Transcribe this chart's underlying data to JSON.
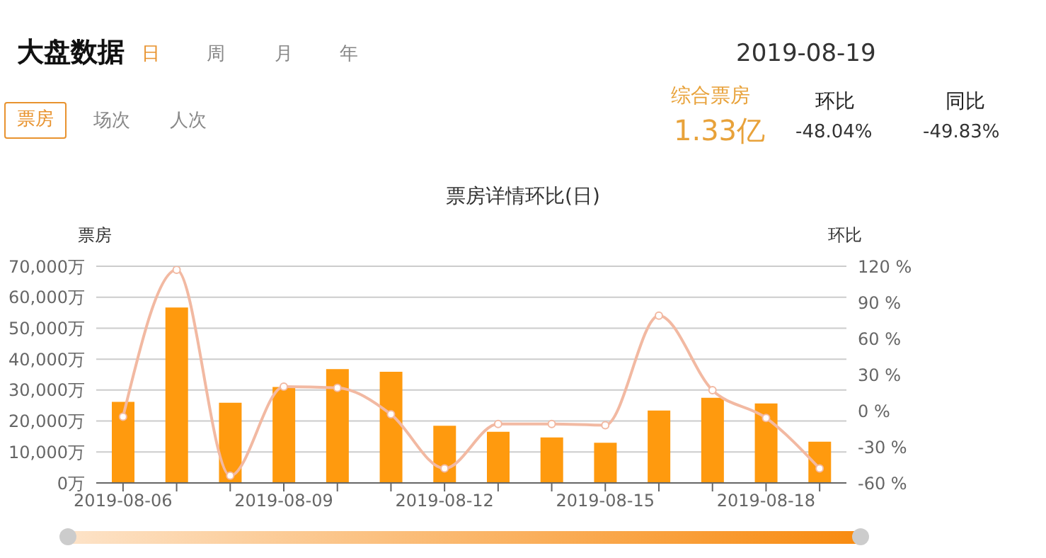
{
  "chart_data": {
    "type": "bar",
    "title": "票房详情环比(日)",
    "ylabel": "票房",
    "y2label": "环比",
    "annotations": [
      "大盘数据",
      "日",
      "周",
      "月",
      "年",
      "2019-08-19",
      "票房",
      "场次",
      "人次",
      "综合票房",
      "1.33亿",
      "环比",
      "-48.04%",
      "同比",
      "-49.83%"
    ],
    "categories": [
      "2019-08-06",
      null,
      null,
      "2019-08-09",
      null,
      null,
      "2019-08-12",
      null,
      null,
      "2019-08-15",
      null,
      null,
      "2019-08-18",
      null
    ],
    "series": [
      {
        "color": "#ff9a0e",
        "values": [
          26200,
          56700,
          25900,
          31000,
          36800,
          35900,
          18500,
          16500,
          14700,
          13000,
          23400,
          27500,
          25700,
          13300
        ]
      },
      {
        "type": "line",
        "axis": "y2",
        "color": "#f2b9a2",
        "values": [
          -5,
          117,
          -54,
          20,
          19,
          -3,
          -48,
          -11,
          -11,
          -12,
          79,
          17,
          -6,
          -48
        ]
      }
    ],
    "ylim": [
      0,
      70000
    ],
    "yticks": [
      {
        "value": 0,
        "label": "0万"
      },
      {
        "value": 10000,
        "label": "10,000万"
      },
      {
        "value": 20000,
        "label": "20,000万"
      },
      {
        "value": 30000,
        "label": "30,000万"
      },
      {
        "value": 40000,
        "label": "40,000万"
      },
      {
        "value": 50000,
        "label": "50,000万"
      },
      {
        "value": 60000,
        "label": "60,000万"
      },
      {
        "value": 70000,
        "label": "70,000万"
      }
    ],
    "y2lim": [
      -60,
      120
    ],
    "y2ticks": [
      {
        "value": -60,
        "label": "-60 %"
      },
      {
        "value": -30,
        "label": "-30 %"
      },
      {
        "value": 0,
        "label": "0 %"
      },
      {
        "value": 30,
        "label": "30 %"
      },
      {
        "value": 60,
        "label": "60 %"
      },
      {
        "value": 90,
        "label": "90 %"
      },
      {
        "value": 120,
        "label": "120 %"
      }
    ],
    "grid": "y",
    "legend": false,
    "marker": "circle",
    "line_style": "solid"
  }
}
